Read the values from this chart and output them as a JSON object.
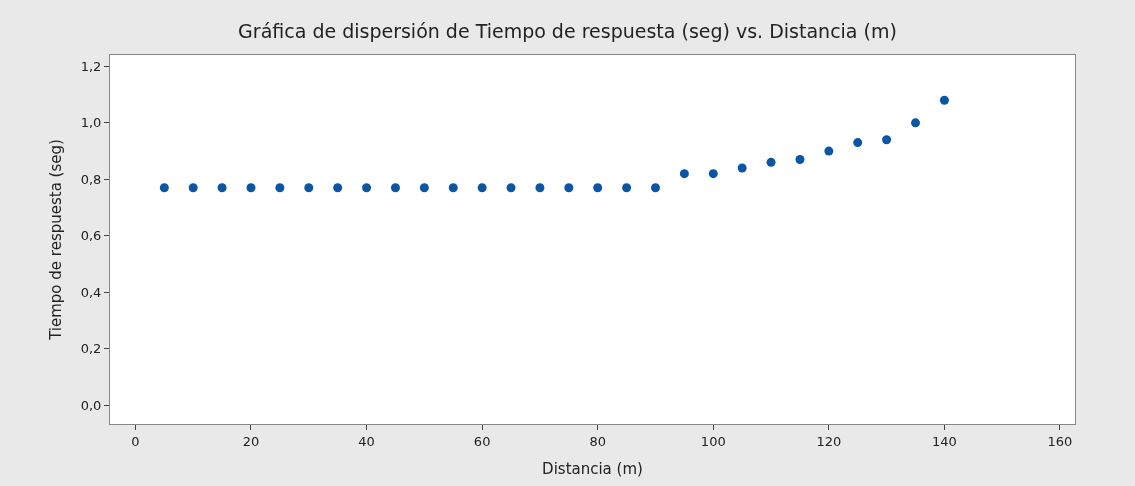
{
  "chart_data": {
    "type": "scatter",
    "title": "Gráfica de dispersión de Tiempo de respuesta (seg) vs. Distancia (m)",
    "xlabel": "Distancia (m)",
    "ylabel": "Tiempo de respuesta (seg)",
    "x": [
      5,
      10,
      15,
      20,
      25,
      30,
      35,
      40,
      45,
      50,
      55,
      60,
      65,
      70,
      75,
      80,
      85,
      90,
      95,
      100,
      105,
      110,
      115,
      120,
      125,
      130,
      135,
      140
    ],
    "series": [
      {
        "color": "#0a56a5",
        "values": [
          0.77,
          0.77,
          0.77,
          0.77,
          0.77,
          0.77,
          0.77,
          0.77,
          0.77,
          0.77,
          0.77,
          0.77,
          0.77,
          0.77,
          0.77,
          0.77,
          0.77,
          0.77,
          0.82,
          0.82,
          0.84,
          0.86,
          0.87,
          0.9,
          0.93,
          0.94,
          1.0,
          1.08
        ]
      }
    ],
    "xlim": [
      -4.4,
      162.6
    ],
    "xticks": [
      0,
      20,
      40,
      60,
      80,
      100,
      120,
      140,
      160
    ],
    "ylim": [
      -0.066,
      1.24
    ],
    "yticks": [
      {
        "value": 0,
        "label": "0,0"
      },
      {
        "value": 0.2,
        "label": "0,2"
      },
      {
        "value": 0.4,
        "label": "0,4"
      },
      {
        "value": 0.6,
        "label": "0,6"
      },
      {
        "value": 0.8,
        "label": "0,8"
      },
      {
        "value": 1.0,
        "label": "1,0"
      },
      {
        "value": 1.2,
        "label": "1,2"
      }
    ],
    "marker": "circle"
  }
}
